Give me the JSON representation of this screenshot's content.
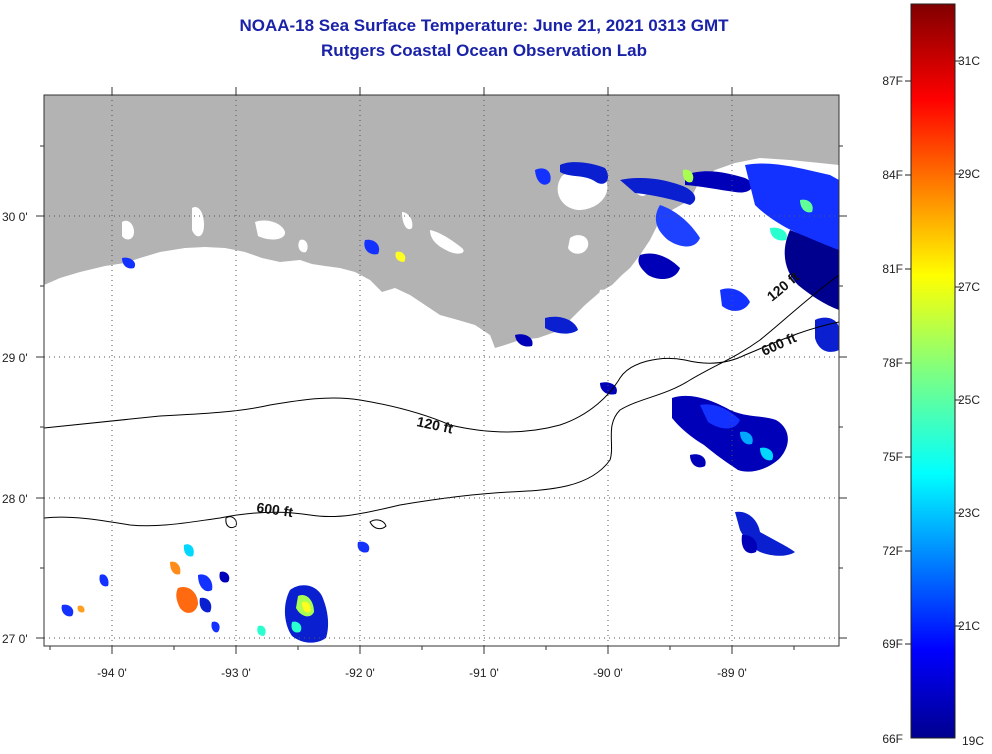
{
  "title_line1": "NOAA-18 Sea Surface Temperature:  June 21, 2021 0313 GMT",
  "title_line2": "Rutgers Coastal Ocean Observation Lab",
  "latitude_labels": [
    "30 0'",
    "29 0'",
    "28 0'",
    "27 0'"
  ],
  "longitude_labels": [
    "-94 0'",
    "-93 0'",
    "-92 0'",
    "-91 0'",
    "-90 0'",
    "-89 0'"
  ],
  "contour_labels": {
    "c120_main": "120 ft",
    "c600_main": "600 ft",
    "c600_east": "600 ft",
    "c120_east": "120 ft"
  },
  "colorbar": {
    "fahrenheit_labels": [
      "87F",
      "84F",
      "81F",
      "78F",
      "75F",
      "72F",
      "69F",
      "66F"
    ],
    "celsius_labels": [
      "31C",
      "29C",
      "27C",
      "25C",
      "23C",
      "21C",
      "19C"
    ],
    "min_c": 19,
    "max_c": 32
  },
  "colors": {
    "title": "#1a22a8",
    "land": "#b3b3b3",
    "water_no_data": "#ffffff",
    "grid": "#666666"
  }
}
